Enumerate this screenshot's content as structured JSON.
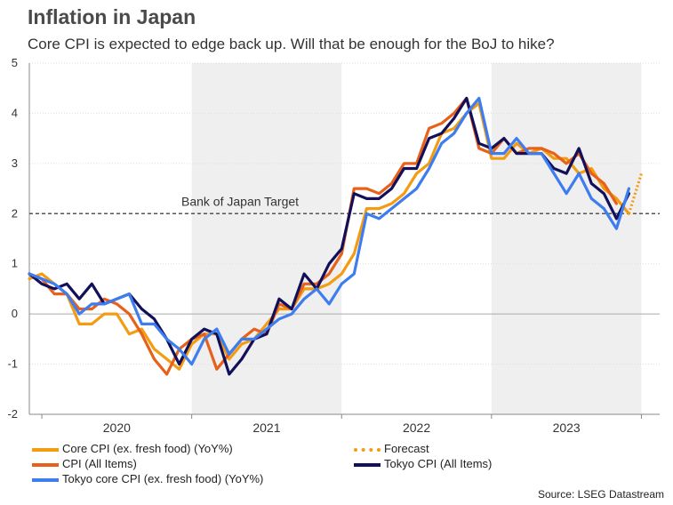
{
  "title": "Inflation in Japan",
  "subtitle": "Core CPI is expected to edge back up. Will that be enough for the BoJ to hike?",
  "source": "Source: LSEG Datastream",
  "colors": {
    "core_cpi": "#f39c12",
    "cpi_all": "#e8611a",
    "tokyo_cpi": "#12105a",
    "tokyo_core": "#3d7df0",
    "forecast": "#f39c12",
    "shade": "#efefef",
    "target": "#555555"
  },
  "chart_data": {
    "type": "line",
    "title": "Inflation in Japan",
    "xlabel": "",
    "ylabel": "",
    "ylim": [
      -2,
      5
    ],
    "yticks": [
      -2,
      -1,
      0,
      1,
      2,
      3,
      4,
      5
    ],
    "x_range": [
      "2019-12",
      "2024-01"
    ],
    "year_labels": [
      "2020",
      "2021",
      "2022",
      "2023"
    ],
    "shaded_years": [
      "2021",
      "2023"
    ],
    "hline": {
      "value": 2,
      "label": "Bank of Japan Target"
    },
    "series": [
      {
        "name": "Core CPI (ex. fresh food) (YoY%)",
        "key": "core_cpi",
        "start": "2019-12",
        "values": [
          0.7,
          0.8,
          0.6,
          0.4,
          -0.2,
          -0.2,
          0.0,
          0.0,
          -0.4,
          -0.3,
          -0.7,
          -0.9,
          -1.1,
          -0.6,
          -0.4,
          -0.4,
          -0.9,
          -0.6,
          -0.5,
          -0.2,
          0.1,
          0.1,
          0.5,
          0.5,
          0.6,
          0.8,
          1.2,
          2.1,
          2.1,
          2.2,
          2.4,
          2.8,
          3.0,
          3.6,
          3.7,
          4.0,
          4.2,
          3.1,
          3.1,
          3.4,
          3.2,
          3.3,
          3.1,
          3.1,
          2.8,
          2.9,
          2.5,
          2.3,
          2.0
        ]
      },
      {
        "name": "CPI (All Items)",
        "key": "cpi_all",
        "start": "2019-12",
        "values": [
          0.8,
          0.7,
          0.4,
          0.4,
          0.1,
          0.1,
          0.3,
          0.2,
          0.0,
          -0.4,
          -0.9,
          -1.2,
          -0.7,
          -0.5,
          -0.4,
          -1.1,
          -0.8,
          -0.5,
          -0.3,
          -0.4,
          0.2,
          0.1,
          0.6,
          0.6,
          0.8,
          1.2,
          2.5,
          2.5,
          2.4,
          2.6,
          3.0,
          3.0,
          3.7,
          3.8,
          4.0,
          4.3,
          3.3,
          3.2,
          3.5,
          3.2,
          3.3,
          3.3,
          3.2,
          3.0,
          3.2,
          2.8,
          2.6,
          2.2
        ]
      },
      {
        "name": "Tokyo CPI (All Items)",
        "key": "tokyo_cpi",
        "start": "2019-12",
        "values": [
          0.8,
          0.6,
          0.5,
          0.6,
          0.3,
          0.6,
          0.2,
          0.3,
          0.4,
          0.1,
          -0.1,
          -0.5,
          -1.0,
          -0.5,
          -0.3,
          -0.4,
          -1.2,
          -0.9,
          -0.5,
          -0.4,
          0.3,
          0.1,
          0.8,
          0.5,
          1.0,
          1.3,
          2.4,
          2.3,
          2.3,
          2.5,
          2.9,
          2.9,
          3.5,
          3.6,
          3.9,
          4.3,
          3.4,
          3.3,
          3.5,
          3.2,
          3.2,
          3.2,
          2.9,
          2.8,
          3.3,
          2.6,
          2.4,
          1.9,
          2.4
        ]
      },
      {
        "name": "Tokyo core CPI (ex. fresh food) (YoY%)",
        "key": "tokyo_core",
        "start": "2019-12",
        "values": [
          0.8,
          0.7,
          0.6,
          0.4,
          0.0,
          0.2,
          0.2,
          0.3,
          0.4,
          -0.2,
          -0.2,
          -0.5,
          -0.7,
          -1.0,
          -0.5,
          -0.3,
          -0.8,
          -0.5,
          -0.5,
          -0.3,
          -0.1,
          0.0,
          0.3,
          0.5,
          0.2,
          0.6,
          0.8,
          2.0,
          1.9,
          2.1,
          2.3,
          2.5,
          2.9,
          3.4,
          3.6,
          4.0,
          4.3,
          3.2,
          3.2,
          3.5,
          3.2,
          3.2,
          2.8,
          2.4,
          2.8,
          2.3,
          2.1,
          1.7,
          2.5
        ]
      },
      {
        "name": "Forecast",
        "key": "forecast",
        "style": "dotted",
        "start": "2023-12",
        "values": [
          2.0,
          2.8
        ]
      }
    ],
    "legend": [
      "Core CPI (ex. fresh food) (YoY%)",
      "CPI (All Items)",
      "Tokyo core CPI (ex. fresh food) (YoY%)",
      "Forecast",
      "Tokyo CPI (All Items)"
    ]
  }
}
